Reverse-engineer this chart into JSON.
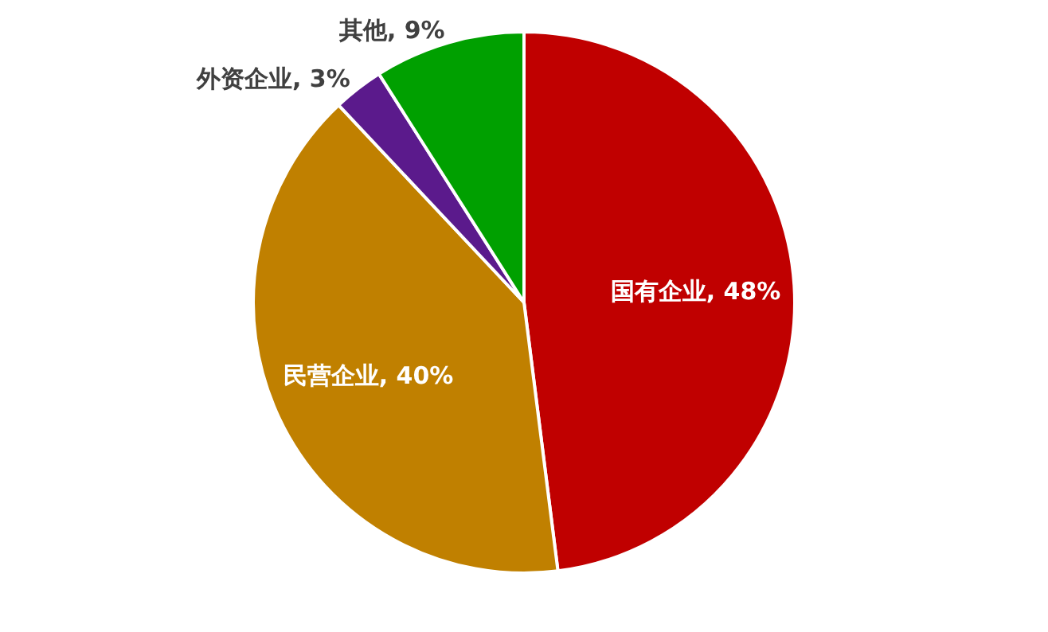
{
  "chart_data": {
    "type": "pie",
    "categories": [
      "国有企业",
      "民营企业",
      "外资企业",
      "其他"
    ],
    "values": [
      48,
      40,
      3,
      9
    ],
    "colors": [
      "#c00000",
      "#c08000",
      "#5b1a8c",
      "#00a000"
    ],
    "value_labels": [
      "48%",
      "40%",
      "3%",
      "9%"
    ]
  }
}
